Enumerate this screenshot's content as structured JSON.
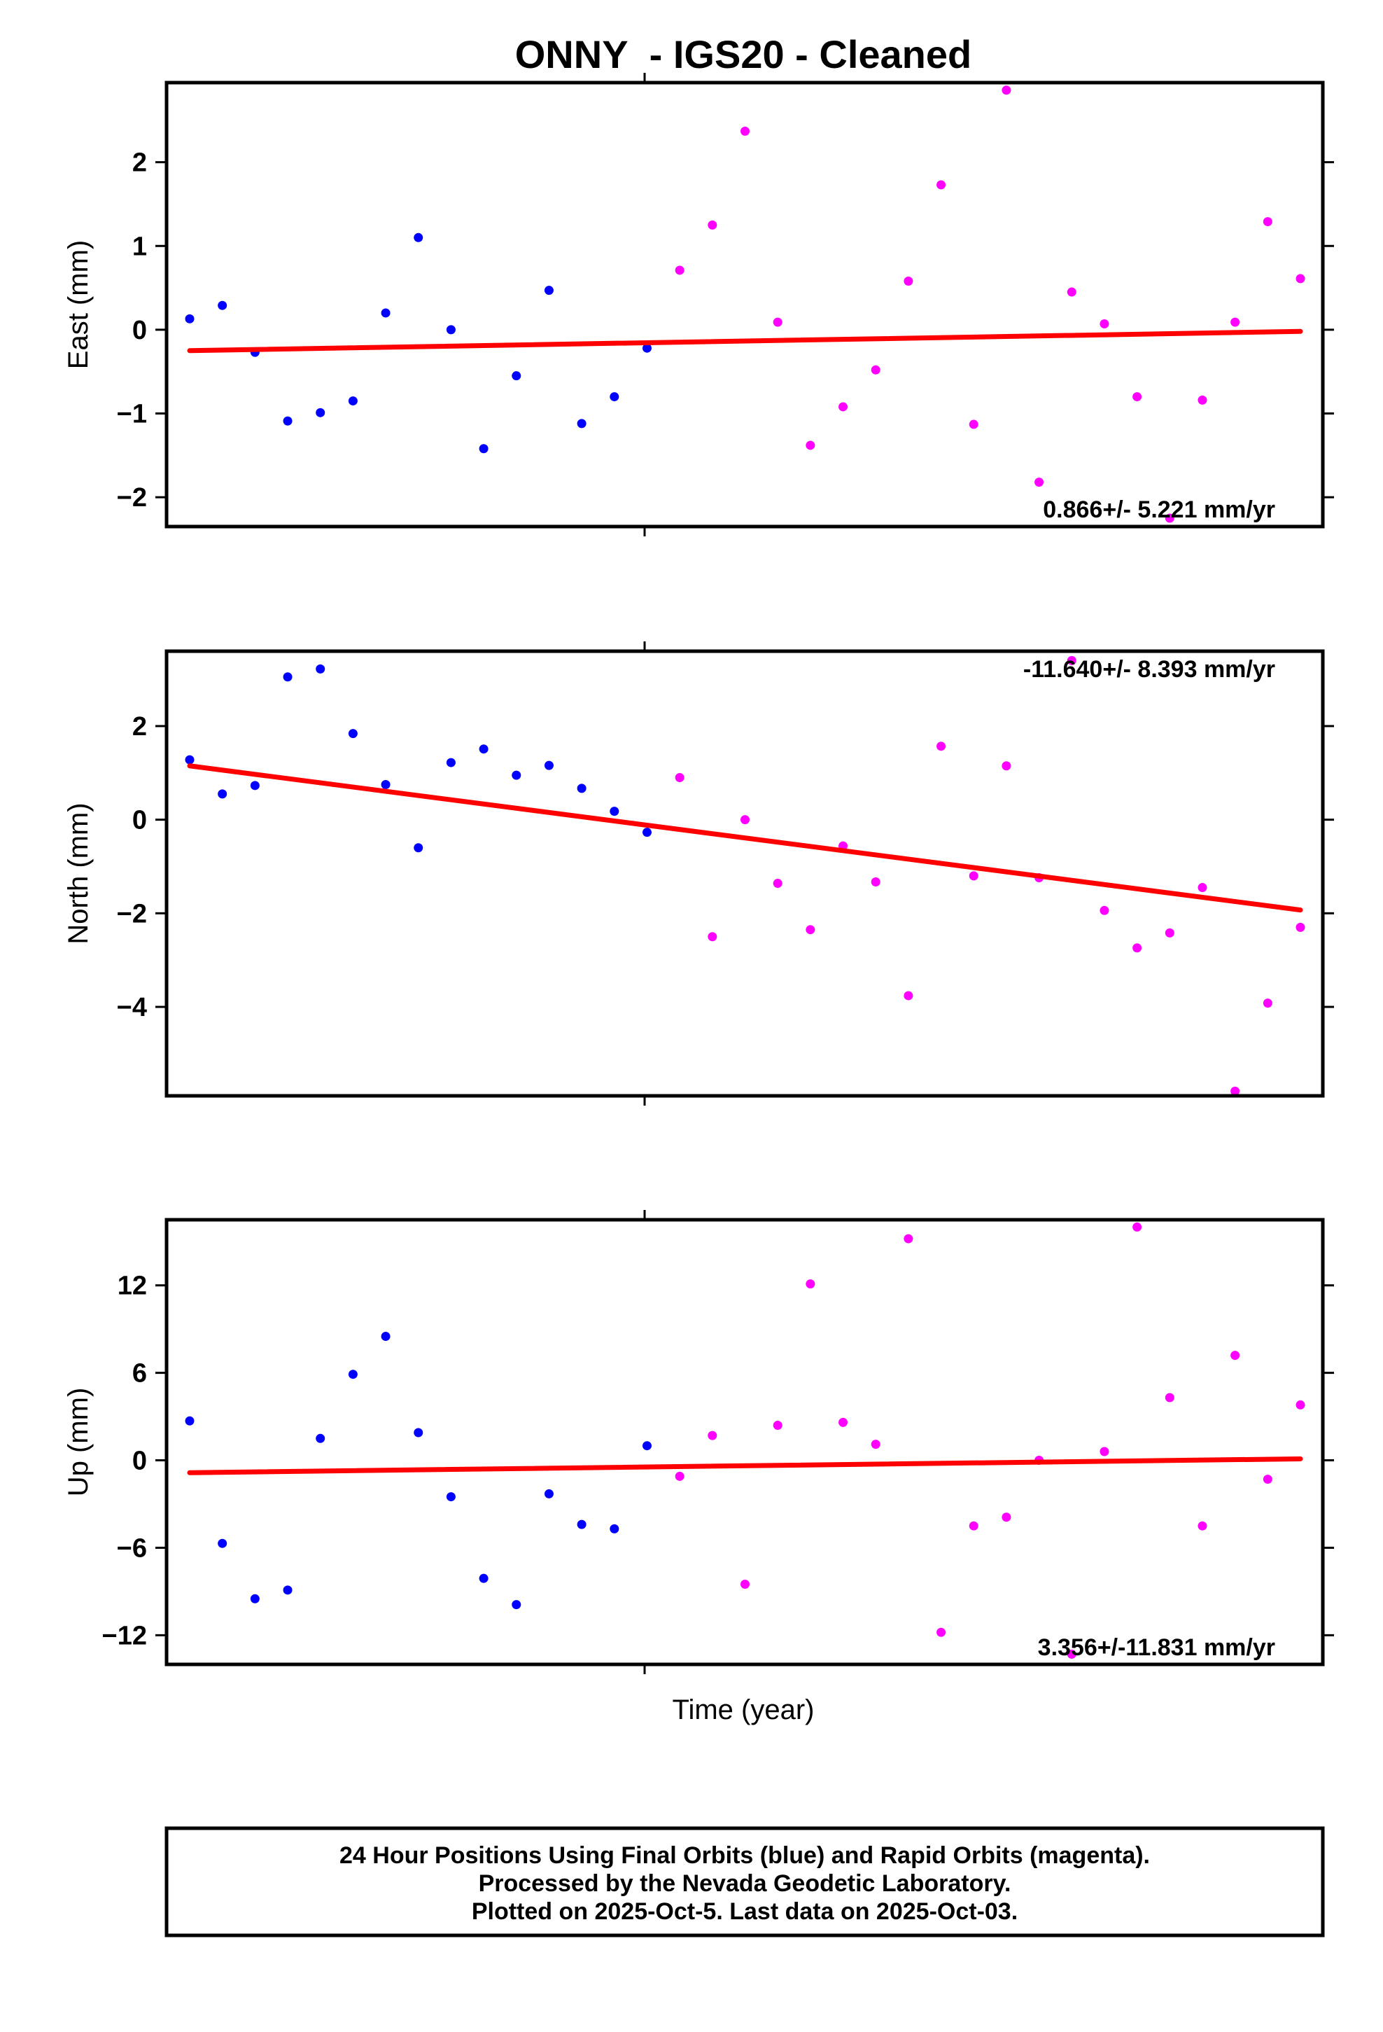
{
  "chart_data": {
    "type": "scatter",
    "title": "ONNY  - IGS20 - Cleaned",
    "xlabel": "Time (year)",
    "legend_note": [
      "24 Hour Positions Using Final Orbits (blue) and Rapid Orbits (magenta).",
      "Processed by the Nevada Geodetic Laboratory.",
      "Plotted on 2025-Oct-5. Last data on 2025-Oct-03."
    ],
    "colors": {
      "final": "#0000ff",
      "rapid": "#ff00ff",
      "trend": "#ff0000"
    },
    "x_index_range": [
      0,
      34
    ],
    "panels": [
      {
        "name": "east",
        "ylabel": "East (mm)",
        "ylim": [
          -2.35,
          2.95
        ],
        "yticks": [
          2,
          1,
          0,
          -1,
          -2
        ],
        "ytick_labels": [
          "2",
          "1",
          "0",
          "−1",
          "−2"
        ],
        "rate_label": "0.866+/- 5.221 mm/yr",
        "rate_position": "bottom-right",
        "trend": {
          "start": -0.25,
          "end": -0.02
        },
        "series": [
          {
            "name": "Final Orbits (blue)",
            "color_key": "final",
            "values": [
              0.13,
              0.29,
              -0.27,
              -1.09,
              -0.99,
              -0.85,
              0.2,
              1.1,
              0.0,
              -1.42,
              -0.55,
              0.47,
              -1.12,
              -0.8,
              -0.22
            ]
          },
          {
            "name": "Rapid Orbits (magenta)",
            "color_key": "rapid",
            "values": [
              0.71,
              1.25,
              2.37,
              0.09,
              -1.38,
              -0.92,
              -0.48,
              0.58,
              1.73,
              -1.13,
              2.86,
              -1.82,
              0.45,
              0.07,
              -0.8,
              -2.25,
              -0.84,
              0.09,
              1.29,
              0.61
            ]
          }
        ]
      },
      {
        "name": "north",
        "ylabel": "North (mm)",
        "ylim": [
          -5.9,
          3.6
        ],
        "yticks": [
          2,
          0,
          -2,
          -4
        ],
        "ytick_labels": [
          "2",
          "0",
          "−2",
          "−4"
        ],
        "rate_label": "-11.640+/- 8.393 mm/yr",
        "rate_position": "top-right",
        "trend": {
          "start": 1.15,
          "end": -1.93
        },
        "series": [
          {
            "name": "Final Orbits (blue)",
            "color_key": "final",
            "values": [
              1.28,
              0.55,
              0.73,
              3.05,
              3.22,
              1.84,
              0.75,
              -0.6,
              1.22,
              1.51,
              0.95,
              1.16,
              0.67,
              0.18,
              -0.27
            ]
          },
          {
            "name": "Rapid Orbits (magenta)",
            "color_key": "rapid",
            "values": [
              0.9,
              -2.5,
              0.0,
              -1.36,
              -2.35,
              -0.56,
              -1.33,
              -3.76,
              1.57,
              -1.2,
              1.15,
              -1.24,
              3.4,
              -1.94,
              -2.74,
              -2.42,
              -1.45,
              -5.8,
              -3.92,
              -2.3
            ]
          }
        ]
      },
      {
        "name": "up",
        "ylabel": "Up (mm)",
        "ylim": [
          -14.0,
          16.5
        ],
        "yticks": [
          12,
          6,
          0,
          -6,
          -12
        ],
        "ytick_labels": [
          "12",
          "6",
          "0",
          "−6",
          "−12"
        ],
        "rate_label": "3.356+/-11.831 mm/yr",
        "rate_position": "bottom-right",
        "trend": {
          "start": -0.85,
          "end": 0.1
        },
        "series": [
          {
            "name": "Final Orbits (blue)",
            "color_key": "final",
            "values": [
              2.7,
              -5.7,
              -9.5,
              -8.9,
              1.5,
              5.9,
              8.5,
              1.9,
              -2.5,
              -8.1,
              -9.9,
              -2.3,
              -4.4,
              -4.7,
              1.0
            ]
          },
          {
            "name": "Rapid Orbits (magenta)",
            "color_key": "rapid",
            "values": [
              -1.1,
              1.7,
              -8.5,
              2.4,
              12.1,
              2.6,
              1.1,
              15.2,
              -11.8,
              -4.5,
              -3.9,
              0.0,
              -13.3,
              0.6,
              16.0,
              4.3,
              -4.5,
              7.2,
              -1.3,
              3.8
            ]
          }
        ]
      }
    ]
  }
}
